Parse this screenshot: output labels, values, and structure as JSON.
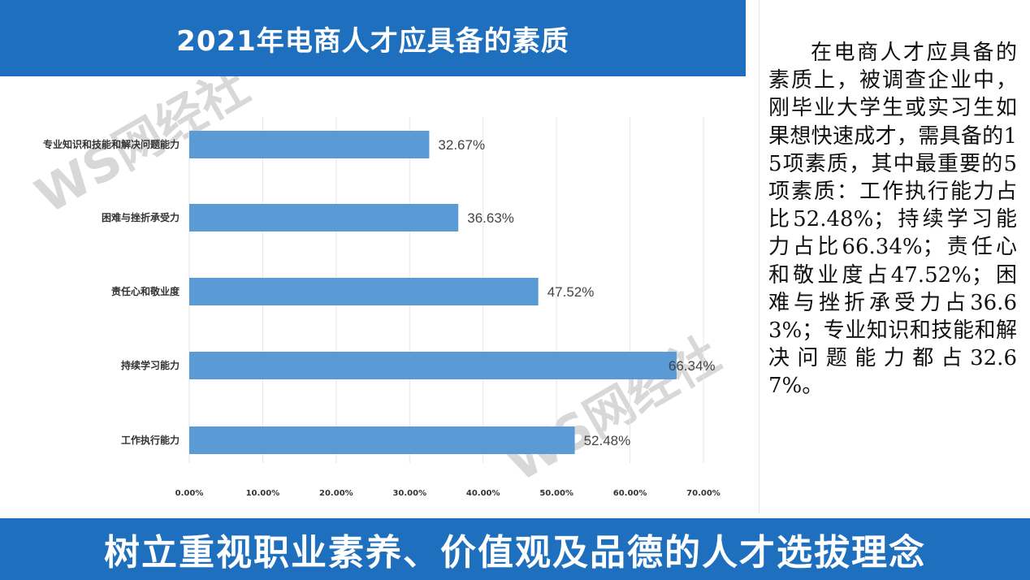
{
  "header": {
    "title": "2021年电商人才应具备的素质"
  },
  "description": "在电商人才应具备的素质上，被调查企业中，刚毕业大学生或实习生如果想快速成才，需具备的15项素质，其中最重要的5项素质：工作执行能力占比52.48%；持续学习能力占比66.34%；责任心和敬业度占47.52%；困难与挫折承受力占36.63%；专业知识和技能和解决问题能力都占32.67%。",
  "banner": {
    "text": "树立重视职业素养、价值观及品德的人才选拔理念"
  },
  "colors": {
    "bar": "#5b9bd5",
    "header": "#1e6fbd",
    "grid": "#e6e6e6"
  },
  "chart_data": {
    "type": "bar",
    "orientation": "horizontal",
    "categories": [
      "专业知识和技能和解决问题能力",
      "困难与挫折承受力",
      "责任心和敬业度",
      "持续学习能力",
      "工作执行能力"
    ],
    "values": [
      32.67,
      36.63,
      47.52,
      66.34,
      52.48
    ],
    "value_labels": [
      "32.67%",
      "36.63%",
      "47.52%",
      "66.34%",
      "52.48%"
    ],
    "xticks": [
      "0.00%",
      "10.00%",
      "20.00%",
      "30.00%",
      "40.00%",
      "50.00%",
      "60.00%",
      "70.00%"
    ],
    "xlim": [
      0,
      70
    ],
    "grid": true,
    "legend": "none"
  }
}
